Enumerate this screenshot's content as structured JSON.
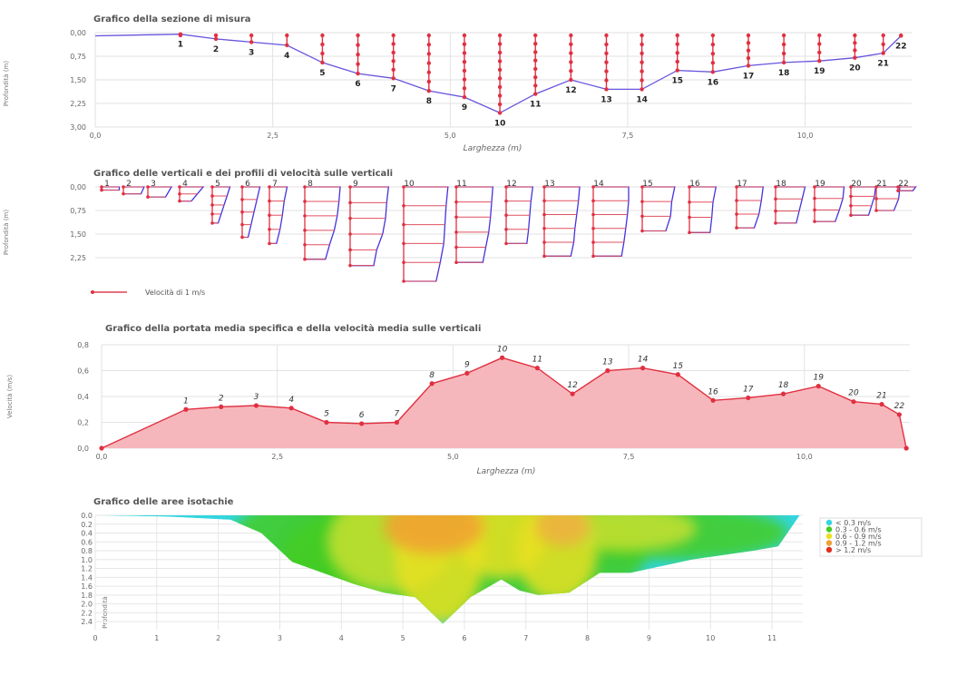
{
  "chart_data": [
    {
      "type": "line",
      "title": "Grafico della sezione di misura",
      "xlabel": "Larghezza (m)",
      "ylabel": "Profondità (m)",
      "xlim": [
        0,
        11.5
      ],
      "ylim": [
        0,
        3.0
      ],
      "x_ticks": [
        "0,0",
        "2,5",
        "5,0",
        "7,5",
        "10,0"
      ],
      "y_ticks": [
        "0,00",
        "0,75",
        "1,50",
        "2,25",
        "3,00"
      ],
      "verticals": [
        {
          "n": "1",
          "x": 1.2,
          "depth": 0.05
        },
        {
          "n": "2",
          "x": 1.7,
          "depth": 0.2
        },
        {
          "n": "3",
          "x": 2.2,
          "depth": 0.3
        },
        {
          "n": "4",
          "x": 2.7,
          "depth": 0.4
        },
        {
          "n": "5",
          "x": 3.2,
          "depth": 0.95
        },
        {
          "n": "6",
          "x": 3.7,
          "depth": 1.3
        },
        {
          "n": "7",
          "x": 4.2,
          "depth": 1.45
        },
        {
          "n": "8",
          "x": 4.7,
          "depth": 1.85
        },
        {
          "n": "9",
          "x": 5.2,
          "depth": 2.05
        },
        {
          "n": "10",
          "x": 5.7,
          "depth": 2.55
        },
        {
          "n": "11",
          "x": 6.2,
          "depth": 1.95
        },
        {
          "n": "12",
          "x": 6.7,
          "depth": 1.5
        },
        {
          "n": "13",
          "x": 7.2,
          "depth": 1.8
        },
        {
          "n": "14",
          "x": 7.7,
          "depth": 1.8
        },
        {
          "n": "15",
          "x": 8.2,
          "depth": 1.2
        },
        {
          "n": "16",
          "x": 8.7,
          "depth": 1.25
        },
        {
          "n": "17",
          "x": 9.2,
          "depth": 1.05
        },
        {
          "n": "18",
          "x": 9.7,
          "depth": 0.95
        },
        {
          "n": "19",
          "x": 10.2,
          "depth": 0.9
        },
        {
          "n": "20",
          "x": 10.7,
          "depth": 0.8
        },
        {
          "n": "21",
          "x": 11.1,
          "depth": 0.65
        },
        {
          "n": "22",
          "x": 11.35,
          "depth": 0.1
        }
      ],
      "bed_start": {
        "x": 0.0,
        "depth": 0.1
      }
    },
    {
      "type": "line",
      "title": "Grafico delle verticali e dei profili di velocità sulle verticali",
      "ylabel": "Profondità (m)",
      "ylim": [
        0,
        3.0
      ],
      "y_ticks": [
        "0,00",
        "0,75",
        "1,50",
        "2,25"
      ],
      "legend": "Velocità di 1 m/s",
      "profiles": [
        {
          "n": "1",
          "depth": 0.1,
          "velocities": [
            0.3,
            0.3
          ]
        },
        {
          "n": "2",
          "depth": 0.22,
          "velocities": [
            0.35,
            0.3
          ]
        },
        {
          "n": "3",
          "depth": 0.32,
          "velocities": [
            0.4,
            0.3
          ]
        },
        {
          "n": "4",
          "depth": 0.45,
          "velocities": [
            0.4,
            0.3,
            0.2
          ]
        },
        {
          "n": "5",
          "depth": 1.15,
          "velocities": [
            0.3,
            0.25,
            0.2,
            0.15,
            0.1
          ]
        },
        {
          "n": "6",
          "depth": 1.6,
          "velocities": [
            0.3,
            0.25,
            0.2,
            0.15,
            0.1
          ]
        },
        {
          "n": "7",
          "depth": 1.8,
          "velocities": [
            0.3,
            0.25,
            0.22,
            0.18,
            0.12
          ]
        },
        {
          "n": "8",
          "depth": 2.3,
          "velocities": [
            0.6,
            0.58,
            0.55,
            0.5,
            0.42,
            0.35
          ]
        },
        {
          "n": "9",
          "depth": 2.5,
          "velocities": [
            0.65,
            0.62,
            0.6,
            0.55,
            0.45,
            0.4
          ]
        },
        {
          "n": "10",
          "depth": 3.0,
          "velocities": [
            0.75,
            0.72,
            0.7,
            0.68,
            0.62,
            0.55
          ]
        },
        {
          "n": "11",
          "depth": 2.4,
          "velocities": [
            0.62,
            0.6,
            0.58,
            0.55,
            0.5,
            0.45
          ]
        },
        {
          "n": "12",
          "depth": 1.8,
          "velocities": [
            0.45,
            0.42,
            0.4,
            0.38,
            0.35
          ]
        },
        {
          "n": "13",
          "depth": 2.2,
          "velocities": [
            0.6,
            0.58,
            0.55,
            0.52,
            0.5,
            0.45
          ]
        },
        {
          "n": "14",
          "depth": 2.2,
          "velocities": [
            0.6,
            0.6,
            0.58,
            0.55,
            0.52,
            0.48
          ]
        },
        {
          "n": "15",
          "depth": 1.4,
          "velocities": [
            0.55,
            0.5,
            0.48,
            0.4
          ]
        },
        {
          "n": "16",
          "depth": 1.45,
          "velocities": [
            0.45,
            0.4,
            0.38,
            0.35
          ]
        },
        {
          "n": "17",
          "depth": 1.3,
          "velocities": [
            0.45,
            0.42,
            0.38,
            0.3
          ]
        },
        {
          "n": "18",
          "depth": 1.15,
          "velocities": [
            0.5,
            0.45,
            0.4,
            0.35
          ]
        },
        {
          "n": "19",
          "depth": 1.1,
          "velocities": [
            0.5,
            0.48,
            0.42,
            0.35
          ]
        },
        {
          "n": "20",
          "depth": 0.9,
          "velocities": [
            0.42,
            0.4,
            0.35,
            0.3
          ]
        },
        {
          "n": "21",
          "depth": 0.75,
          "velocities": [
            0.4,
            0.38,
            0.3
          ]
        },
        {
          "n": "22",
          "depth": 0.12,
          "velocities": [
            0.3,
            0.25
          ]
        }
      ]
    },
    {
      "type": "area",
      "title": "Grafico della portata media specifica e della velocità media sulle verticali",
      "xlabel": "Larghezza (m)",
      "ylabel": "Velocità (m/s)",
      "xlim": [
        0,
        11.5
      ],
      "ylim": [
        0,
        0.8
      ],
      "x_ticks": [
        "0,0",
        "2,5",
        "5,0",
        "7,5",
        "10,0"
      ],
      "y_ticks": [
        "0,0",
        "0,2",
        "0,4",
        "0,6",
        "0,8"
      ],
      "points": [
        {
          "n": "",
          "x": 0.0,
          "y": 0.0
        },
        {
          "n": "1",
          "x": 1.2,
          "y": 0.3
        },
        {
          "n": "2",
          "x": 1.7,
          "y": 0.32
        },
        {
          "n": "3",
          "x": 2.2,
          "y": 0.33
        },
        {
          "n": "4",
          "x": 2.7,
          "y": 0.31
        },
        {
          "n": "5",
          "x": 3.2,
          "y": 0.2
        },
        {
          "n": "6",
          "x": 3.7,
          "y": 0.19
        },
        {
          "n": "7",
          "x": 4.2,
          "y": 0.2
        },
        {
          "n": "8",
          "x": 4.7,
          "y": 0.5
        },
        {
          "n": "9",
          "x": 5.2,
          "y": 0.58
        },
        {
          "n": "10",
          "x": 5.7,
          "y": 0.7
        },
        {
          "n": "11",
          "x": 6.2,
          "y": 0.62
        },
        {
          "n": "12",
          "x": 6.7,
          "y": 0.42
        },
        {
          "n": "13",
          "x": 7.2,
          "y": 0.6
        },
        {
          "n": "14",
          "x": 7.7,
          "y": 0.62
        },
        {
          "n": "15",
          "x": 8.2,
          "y": 0.57
        },
        {
          "n": "16",
          "x": 8.7,
          "y": 0.37
        },
        {
          "n": "17",
          "x": 9.2,
          "y": 0.39
        },
        {
          "n": "18",
          "x": 9.7,
          "y": 0.42
        },
        {
          "n": "19",
          "x": 10.2,
          "y": 0.48
        },
        {
          "n": "20",
          "x": 10.7,
          "y": 0.36
        },
        {
          "n": "21",
          "x": 11.1,
          "y": 0.34
        },
        {
          "n": "22",
          "x": 11.35,
          "y": 0.26
        },
        {
          "n": "",
          "x": 11.45,
          "y": 0.0
        }
      ]
    },
    {
      "type": "heatmap",
      "title": "Grafico delle aree isotachie",
      "ylabel": "Profondità",
      "xlim": [
        0,
        11.5
      ],
      "ylim": [
        0,
        2.5
      ],
      "x_ticks": [
        "0",
        "1",
        "2",
        "3",
        "4",
        "5",
        "6",
        "7",
        "8",
        "9",
        "10",
        "11"
      ],
      "y_ticks": [
        "0.0",
        "0.2",
        "0.4",
        "0.6",
        "0.8",
        "1.0",
        "1.2",
        "1.4",
        "1.6",
        "1.8",
        "2.0",
        "2.2",
        "2.4"
      ],
      "legend": [
        {
          "label": "< 0.3 m/s",
          "color": "#33d6e0"
        },
        {
          "label": "0.3 - 0.6 m/s",
          "color": "#44cc22"
        },
        {
          "label": "0.6 - 0.9 m/s",
          "color": "#e8e020"
        },
        {
          "label": "0.9 - 1.2 m/s",
          "color": "#f0a030"
        },
        {
          "label": "> 1.2 m/s",
          "color": "#e03020"
        }
      ]
    }
  ]
}
